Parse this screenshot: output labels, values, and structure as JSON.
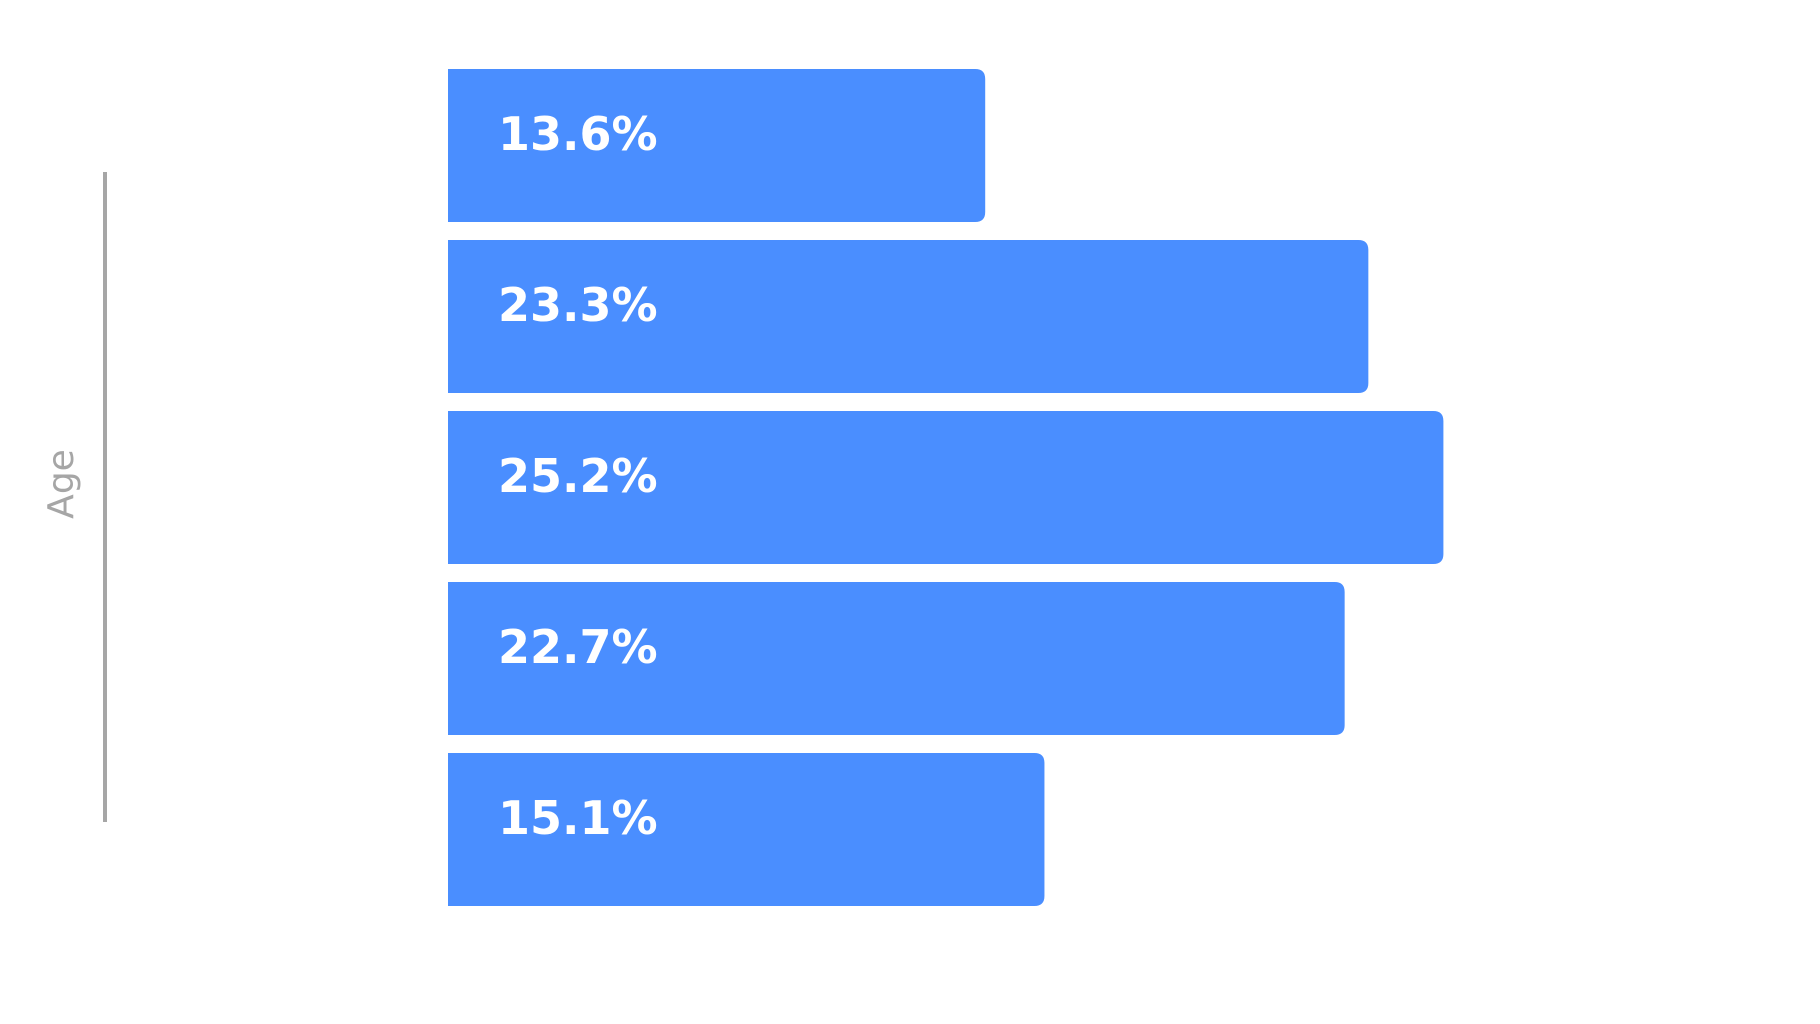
{
  "chart_data": {
    "type": "bar",
    "orientation": "horizontal",
    "ylabel": "Age",
    "title": "",
    "xlabel": "",
    "values": [
      13.6,
      23.3,
      25.2,
      22.7,
      15.1
    ],
    "data_labels": [
      "13.6%",
      "23.3%",
      "25.2%",
      "22.7%",
      "15.1%"
    ],
    "bar_color": "#4a8eff",
    "axis_line_color": "#a6a6a6",
    "grid": false,
    "legend": "none"
  }
}
